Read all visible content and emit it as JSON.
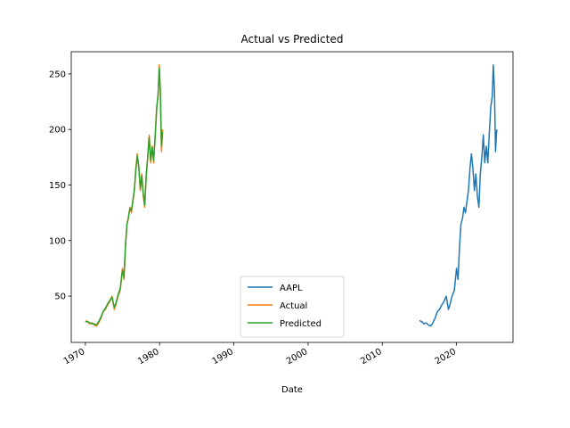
{
  "chart_data": {
    "type": "line",
    "title": "Actual vs Predicted",
    "xlabel": "Date",
    "ylabel": "",
    "xlim": [
      1968.1,
      2027.6
    ],
    "ylim": [
      8.3,
      270
    ],
    "x_ticks": [
      1970,
      1980,
      1990,
      2000,
      2010,
      2020
    ],
    "x_tick_labels": [
      "1970",
      "1980",
      "1990",
      "2000",
      "2010",
      "2020"
    ],
    "y_ticks": [
      50,
      100,
      150,
      200,
      250
    ],
    "y_tick_labels": [
      "50",
      "100",
      "150",
      "200",
      "250"
    ],
    "legend_position": "lower-center",
    "colors": {
      "AAPL": "#1f77b4",
      "Actual": "#ff7f0e",
      "Predicted": "#2ca02c"
    },
    "series": [
      {
        "name": "AAPL",
        "x": [
          2015.0,
          2015.3,
          2015.6,
          2015.9,
          2016.2,
          2016.5,
          2016.8,
          2017.1,
          2017.4,
          2017.7,
          2018.0,
          2018.3,
          2018.6,
          2018.9,
          2019.1,
          2019.4,
          2019.7,
          2020.0,
          2020.2,
          2020.4,
          2020.6,
          2020.8,
          2021.0,
          2021.2,
          2021.4,
          2021.6,
          2021.8,
          2022.0,
          2022.2,
          2022.4,
          2022.6,
          2022.8,
          2023.0,
          2023.2,
          2023.4,
          2023.6,
          2023.8,
          2024.0,
          2024.2,
          2024.4,
          2024.6,
          2024.8,
          2024.95,
          2025.1,
          2025.25,
          2025.4
        ],
        "y": [
          28,
          27,
          25,
          26,
          24,
          23,
          26,
          30,
          36,
          38,
          42,
          45,
          50,
          38,
          42,
          50,
          55,
          75,
          65,
          95,
          115,
          120,
          130,
          125,
          135,
          145,
          165,
          178,
          165,
          145,
          160,
          140,
          130,
          160,
          175,
          195,
          170,
          185,
          170,
          195,
          220,
          230,
          258,
          235,
          180,
          200
        ]
      },
      {
        "name": "Actual",
        "x": [
          1970.0,
          1970.3,
          1970.6,
          1970.9,
          1971.2,
          1971.5,
          1971.8,
          1972.1,
          1972.4,
          1972.7,
          1973.0,
          1973.3,
          1973.6,
          1973.9,
          1974.1,
          1974.4,
          1974.7,
          1975.0,
          1975.2,
          1975.4,
          1975.6,
          1975.8,
          1976.0,
          1976.2,
          1976.4,
          1976.6,
          1976.8,
          1977.0,
          1977.2,
          1977.4,
          1977.6,
          1977.8,
          1978.0,
          1978.2,
          1978.4,
          1978.6,
          1978.8,
          1979.0,
          1979.2,
          1979.4,
          1979.6,
          1979.8,
          1979.95,
          1980.1,
          1980.25,
          1980.4
        ],
        "y": [
          28,
          27,
          25,
          26,
          24,
          23,
          26,
          30,
          36,
          38,
          42,
          45,
          50,
          38,
          42,
          50,
          55,
          75,
          65,
          95,
          115,
          120,
          130,
          125,
          135,
          145,
          165,
          178,
          165,
          145,
          160,
          140,
          130,
          160,
          175,
          195,
          170,
          185,
          170,
          195,
          220,
          230,
          258,
          235,
          180,
          200
        ]
      },
      {
        "name": "Predicted",
        "x": [
          1970.0,
          1970.3,
          1970.6,
          1970.9,
          1971.2,
          1971.5,
          1971.8,
          1972.1,
          1972.4,
          1972.7,
          1973.0,
          1973.3,
          1973.6,
          1973.9,
          1974.1,
          1974.4,
          1974.7,
          1975.0,
          1975.2,
          1975.4,
          1975.6,
          1975.8,
          1976.0,
          1976.2,
          1976.4,
          1976.6,
          1976.8,
          1977.0,
          1977.2,
          1977.4,
          1977.6,
          1977.8,
          1978.0,
          1978.2,
          1978.4,
          1978.6,
          1978.8,
          1979.0,
          1979.2,
          1979.4,
          1979.6,
          1979.8,
          1979.95,
          1980.1,
          1980.25,
          1980.4
        ],
        "y": [
          27,
          27,
          26,
          25,
          25,
          24,
          27,
          31,
          36,
          39,
          43,
          46,
          49,
          40,
          43,
          51,
          57,
          73,
          67,
          96,
          114,
          121,
          129,
          127,
          136,
          146,
          163,
          176,
          166,
          147,
          158,
          142,
          132,
          158,
          176,
          193,
          172,
          184,
          172,
          193,
          218,
          232,
          255,
          236,
          185,
          198
        ]
      }
    ]
  }
}
